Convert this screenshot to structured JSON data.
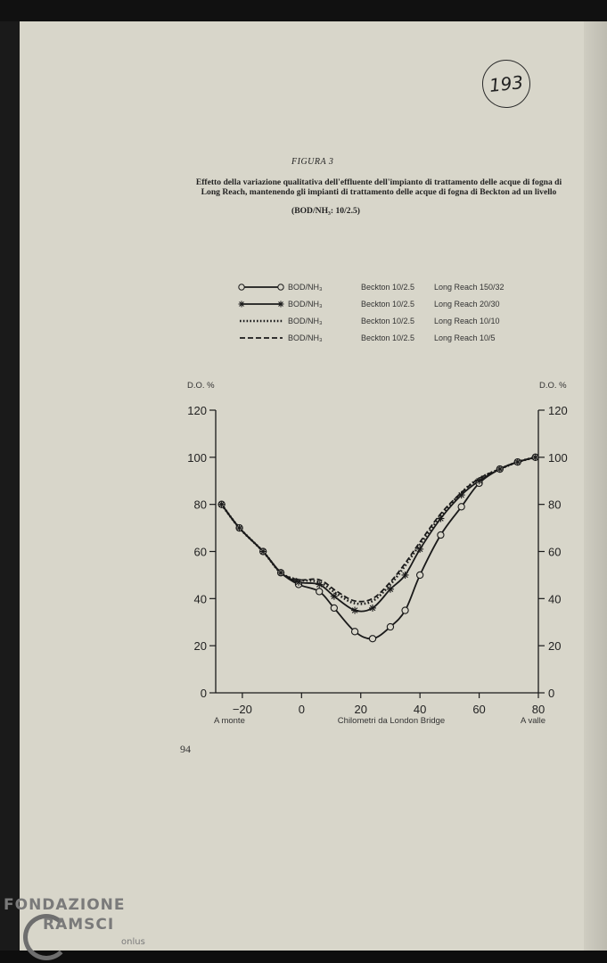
{
  "document": {
    "stamp": "193",
    "figure_label": "FIGURA 3",
    "caption_line1": "Effetto della variazione qualitativa dell'effluente dell'impianto di trattamento delle acque di fogna di",
    "caption_line2": "Long Reach, mantenendo gli impianti di trattamento delle acque di fogna di Beckton ad un livello",
    "caption_line3": "(BOD/NH₃: 10/2.5)",
    "page_number": "94"
  },
  "watermark": {
    "line1": "FONDAZIONE",
    "line2": "RAMSCI",
    "line3": "onlus"
  },
  "legend": [
    {
      "ratio": "BOD/NH₃",
      "beckton": "Beckton 10/2.5",
      "long_reach": "Long Reach 150/32",
      "style": "circle-solid"
    },
    {
      "ratio": "BOD/NH₃",
      "beckton": "Beckton 10/2.5",
      "long_reach": "Long Reach 20/30",
      "style": "star-solid"
    },
    {
      "ratio": "BOD/NH₃",
      "beckton": "Beckton 10/2.5",
      "long_reach": "Long Reach 10/10",
      "style": "dotted"
    },
    {
      "ratio": "BOD/NH₃",
      "beckton": "Beckton 10/2.5",
      "long_reach": "Long Reach 10/5",
      "style": "dashed"
    }
  ],
  "chart_data": {
    "type": "line",
    "ylabel_left": "D.O. %",
    "ylabel_right": "D.O. %",
    "xlabel": "Chilometri da London Bridge",
    "x_left_note": "A monte",
    "x_right_note": "A valle",
    "xlim": [
      -29,
      80
    ],
    "ylim": [
      0,
      120
    ],
    "xticks": [
      -20,
      0,
      20,
      40,
      60,
      80
    ],
    "yticks": [
      0,
      20,
      40,
      60,
      80,
      100,
      120
    ],
    "grid": false,
    "series": [
      {
        "name": "Long Reach 150/32",
        "style": "circle-solid",
        "x": [
          -27,
          -21,
          -13,
          -7,
          -1,
          6,
          11,
          18,
          24,
          30,
          35,
          40,
          47,
          54,
          60,
          67,
          73,
          79
        ],
        "y": [
          80,
          70,
          60,
          51,
          46,
          43,
          36,
          26,
          23,
          28,
          35,
          50,
          67,
          79,
          89,
          95,
          98,
          100
        ]
      },
      {
        "name": "Long Reach 20/30",
        "style": "star-solid",
        "x": [
          -27,
          -21,
          -13,
          -7,
          -1,
          6,
          11,
          18,
          24,
          30,
          35,
          40,
          47,
          54,
          60,
          67,
          73,
          79
        ],
        "y": [
          80,
          70,
          60,
          51,
          47,
          46,
          41,
          35,
          36,
          44,
          50,
          61,
          74,
          84,
          90,
          95,
          98,
          100
        ]
      },
      {
        "name": "Long Reach 10/10",
        "style": "dotted",
        "x": [
          -27,
          -21,
          -13,
          -7,
          -1,
          6,
          12,
          18,
          24,
          30,
          35,
          40,
          47,
          54,
          60,
          67,
          73,
          79
        ],
        "y": [
          80,
          70,
          60,
          51,
          48,
          47,
          42,
          38,
          39,
          46,
          54,
          63,
          75,
          85,
          91,
          95,
          98,
          100
        ]
      },
      {
        "name": "Long Reach 10/5",
        "style": "dashed",
        "x": [
          -27,
          -21,
          -13,
          -7,
          -1,
          6,
          12,
          18,
          24,
          30,
          35,
          40,
          47,
          54,
          60,
          67,
          73,
          79
        ],
        "y": [
          80,
          70,
          60,
          51,
          48,
          48,
          43,
          39,
          40,
          47,
          55,
          64,
          76,
          85,
          91,
          95,
          98,
          100
        ]
      }
    ]
  }
}
